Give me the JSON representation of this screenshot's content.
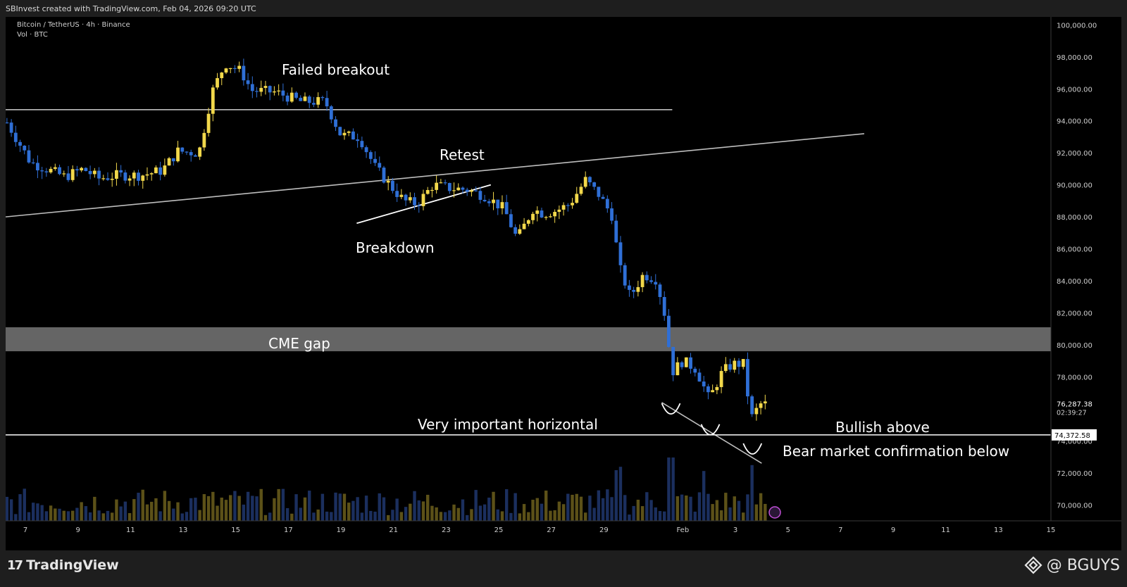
{
  "header": {
    "credit": "SBInvest created with TradingView.com, Feb 04, 2026 09:20 UTC"
  },
  "legend": {
    "symbol": "Bitcoin / TetherUS · 4h · Binance",
    "volume": "Vol · BTC"
  },
  "annotations": {
    "failed_breakout": "Failed breakout",
    "retest": "Retest",
    "breakdown": "Breakdown",
    "cme_gap": "CME gap",
    "very_important_horizontal": "Very important horizontal",
    "bullish_above": "Bullish above",
    "bear_market_below": "Bear market confirmation below"
  },
  "price_labels": {
    "last_price": "76,287.38",
    "countdown": "02:39:27",
    "horizontal_level": "74,372.58"
  },
  "footer": {
    "brand": "TradingView",
    "watermark": "@ BGUYS"
  },
  "colors": {
    "up": "#f2d84b",
    "down": "#2f6fd6",
    "vol_up": "#5c5118",
    "vol_down": "#1b2f5e",
    "cme_band": "#6a6a6a",
    "horizontal": "#ffffff",
    "trendline": "#bdbdbd"
  },
  "chart_data": {
    "type": "candlestick",
    "symbol": "Bitcoin / TetherUS",
    "interval": "4h",
    "exchange": "Binance",
    "ylim": [
      69000,
      100500
    ],
    "y_ticks": [
      "100,000.00",
      "98,000.00",
      "96,000.00",
      "94,000.00",
      "92,000.00",
      "90,000.00",
      "88,000.00",
      "86,000.00",
      "84,000.00",
      "82,000.00",
      "80,000.00",
      "78,000.00",
      "76,000.00",
      "74,000.00",
      "72,000.00",
      "70,000.00"
    ],
    "x_day_range": [
      6.25,
      46.0
    ],
    "x_ticks": [
      {
        "day": 7,
        "label": "7"
      },
      {
        "day": 9,
        "label": "9"
      },
      {
        "day": 11,
        "label": "11"
      },
      {
        "day": 13,
        "label": "13"
      },
      {
        "day": 15,
        "label": "15"
      },
      {
        "day": 17,
        "label": "17"
      },
      {
        "day": 19,
        "label": "19"
      },
      {
        "day": 21,
        "label": "21"
      },
      {
        "day": 23,
        "label": "23"
      },
      {
        "day": 25,
        "label": "25"
      },
      {
        "day": 27,
        "label": "27"
      },
      {
        "day": 29,
        "label": "29"
      },
      {
        "day": 32,
        "label": "Feb"
      },
      {
        "day": 34,
        "label": "3"
      },
      {
        "day": 36,
        "label": "5"
      },
      {
        "day": 38,
        "label": "7"
      },
      {
        "day": 40,
        "label": "9"
      },
      {
        "day": 42,
        "label": "11"
      },
      {
        "day": 44,
        "label": "13"
      },
      {
        "day": 46,
        "label": "15"
      }
    ],
    "cme_gap": [
      79600,
      81100
    ],
    "horizontal_level": 74372.58,
    "last_price": 76287.38,
    "resistance_line": {
      "from": [
        6.25,
        94700
      ],
      "to": [
        31.6,
        94700
      ]
    },
    "rising_trendline": {
      "from": [
        6.25,
        88000
      ],
      "to": [
        38.9,
        93200
      ]
    },
    "breakdown_line": {
      "from": [
        19.6,
        87600
      ],
      "to": [
        24.7,
        90000
      ]
    },
    "descending_line": {
      "from": [
        31.2,
        76400
      ],
      "to": [
        35.0,
        72600
      ]
    },
    "bottom_arcs": [
      {
        "day": 31.55,
        "price": 75900
      },
      {
        "day": 33.05,
        "price": 74600
      },
      {
        "day": 34.65,
        "price": 73400
      }
    ],
    "price_path": [
      [
        6.3,
        93900
      ],
      [
        7.2,
        91400
      ],
      [
        7.8,
        91000
      ],
      [
        8.5,
        90500
      ],
      [
        9.2,
        91000
      ],
      [
        9.8,
        90400
      ],
      [
        10.5,
        90600
      ],
      [
        11.4,
        90600
      ],
      [
        12.2,
        90900
      ],
      [
        12.8,
        92100
      ],
      [
        13.6,
        92000
      ],
      [
        14.1,
        95800
      ],
      [
        14.6,
        97600
      ],
      [
        15.2,
        97100
      ],
      [
        15.6,
        95900
      ],
      [
        16.5,
        95800
      ],
      [
        17.5,
        95200
      ],
      [
        18.4,
        95200
      ],
      [
        19.0,
        93100
      ],
      [
        19.7,
        93000
      ],
      [
        20.3,
        91100
      ],
      [
        20.9,
        89900
      ],
      [
        21.4,
        89000
      ],
      [
        21.9,
        88800
      ],
      [
        22.5,
        90000
      ],
      [
        23.1,
        89800
      ],
      [
        23.8,
        89700
      ],
      [
        24.5,
        89300
      ],
      [
        25.2,
        88500
      ],
      [
        25.7,
        86600
      ],
      [
        26.3,
        88500
      ],
      [
        26.7,
        88200
      ],
      [
        27.2,
        88400
      ],
      [
        27.7,
        88800
      ],
      [
        28.3,
        90300
      ],
      [
        28.8,
        89400
      ],
      [
        29.3,
        88100
      ],
      [
        29.6,
        84800
      ],
      [
        30.0,
        83000
      ],
      [
        30.5,
        84400
      ],
      [
        31.0,
        84100
      ],
      [
        31.3,
        82000
      ],
      [
        31.6,
        78300
      ],
      [
        32.0,
        79000
      ],
      [
        32.5,
        78500
      ],
      [
        33.0,
        76600
      ],
      [
        33.5,
        78300
      ],
      [
        33.9,
        78800
      ],
      [
        34.3,
        78800
      ],
      [
        34.6,
        75400
      ],
      [
        34.95,
        76300
      ],
      [
        35.2,
        76287
      ]
    ],
    "volume_spikes": [
      [
        29.55,
        0.7
      ],
      [
        29.7,
        0.78
      ],
      [
        31.55,
        1.0
      ],
      [
        32.85,
        0.68
      ],
      [
        34.6,
        0.82
      ]
    ]
  }
}
